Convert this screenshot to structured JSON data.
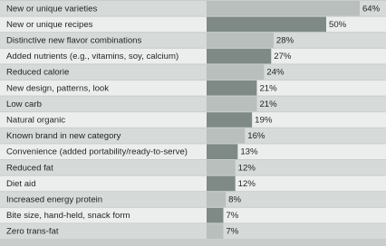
{
  "chart_data": {
    "type": "barh",
    "categories": [
      "New or unique varieties",
      "New or unique recipes",
      "Distinctive new flavor combinations",
      "Added nutrients (e.g., vitamins, soy, calcium)",
      "Reduced calorie",
      "New design, patterns, look",
      "Low carb",
      "Natural organic",
      "Known brand in new category",
      "Convenience (added portability/ready-to-serve)",
      "Reduced fat",
      "Diet aid",
      "Increased energy protein",
      "Bite size, hand-held, snack form",
      "Zero trans-fat"
    ],
    "values": [
      64,
      50,
      28,
      27,
      24,
      21,
      21,
      19,
      16,
      13,
      12,
      12,
      8,
      7,
      7
    ],
    "value_labels": [
      "64%",
      "50%",
      "28%",
      "27%",
      "24%",
      "21%",
      "21%",
      "19%",
      "16%",
      "13%",
      "12%",
      "12%",
      "8%",
      "7%",
      "7%"
    ],
    "xlim": [
      0,
      75
    ],
    "bar_colors": [
      "#b8bfbc",
      "#7f8a86"
    ],
    "row_colors": [
      "#d6dad8",
      "#eceeed"
    ]
  }
}
